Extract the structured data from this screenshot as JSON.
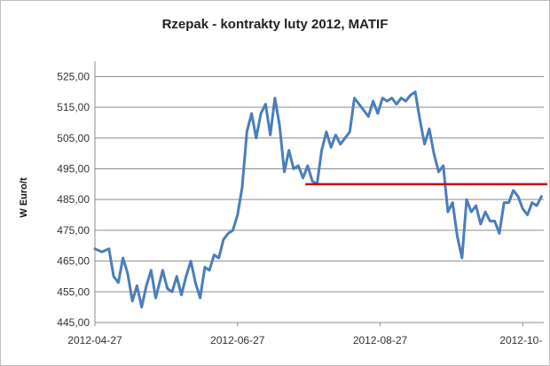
{
  "chart_data": {
    "type": "line",
    "title": "Rzepak - kontrakty luty 2012, MATIF",
    "ylabel": "W Euro/t",
    "xlabel": "",
    "ylim": [
      445,
      530
    ],
    "yticks": [
      "445,00",
      "455,00",
      "465,00",
      "475,00",
      "485,00",
      "495,00",
      "505,00",
      "515,00",
      "525,00"
    ],
    "ytick_values": [
      445,
      455,
      465,
      475,
      485,
      495,
      505,
      515,
      525
    ],
    "xticks": [
      "2012-04-27",
      "2012-06-27",
      "2012-08-27",
      "2012-10-"
    ],
    "xtick_values": [
      0,
      61,
      122,
      183
    ],
    "xlim": [
      0,
      192
    ],
    "grid": "horizontal",
    "colors": {
      "series": "#4a7ebb",
      "reference_line": "#cc0000"
    },
    "series": [
      {
        "name": "",
        "x": [
          0,
          3,
          6,
          8,
          10,
          12,
          14,
          16,
          18,
          20,
          22,
          24,
          26,
          28,
          29,
          31,
          33,
          35,
          37,
          39,
          41,
          43,
          45,
          47,
          49,
          51,
          53,
          55,
          57,
          59,
          61,
          63,
          65,
          67,
          69,
          71,
          73,
          75,
          77,
          79,
          81,
          83,
          85,
          87,
          89,
          91,
          93,
          95,
          97,
          99,
          101,
          103,
          105,
          107,
          109,
          111,
          113,
          115,
          117,
          119,
          121,
          123,
          125,
          127,
          129,
          131,
          133,
          135,
          137,
          139,
          141,
          143,
          145,
          147,
          149,
          151,
          153,
          155,
          157,
          159,
          161,
          163,
          165,
          167,
          169,
          171,
          173,
          175,
          177,
          179,
          181,
          183,
          185,
          187,
          189,
          191
        ],
        "values": [
          469,
          468,
          469,
          460,
          458,
          466,
          461,
          452,
          457,
          450,
          457,
          462,
          453,
          459,
          462,
          456,
          455,
          460,
          454,
          460,
          465,
          458,
          453,
          463,
          462,
          467,
          466,
          472,
          474,
          475,
          480,
          489,
          507,
          513,
          505,
          513,
          516,
          506,
          518,
          509,
          494,
          501,
          495,
          496,
          492,
          496,
          491,
          490,
          501,
          507,
          502,
          506,
          503,
          505,
          507,
          518,
          516,
          514,
          512,
          517,
          513,
          518,
          517,
          518,
          516,
          518,
          517,
          519,
          520,
          511,
          503,
          508,
          500,
          494,
          496,
          481,
          484,
          473,
          466,
          485,
          481,
          483,
          477,
          481,
          478,
          478,
          474,
          484,
          484,
          488,
          486,
          482,
          480,
          484,
          483,
          486
        ],
        "note_points_x_days_from_2012-04-27": true
      }
    ],
    "reference_line": {
      "y": 490,
      "x_start": 90,
      "x_end": 192
    }
  }
}
